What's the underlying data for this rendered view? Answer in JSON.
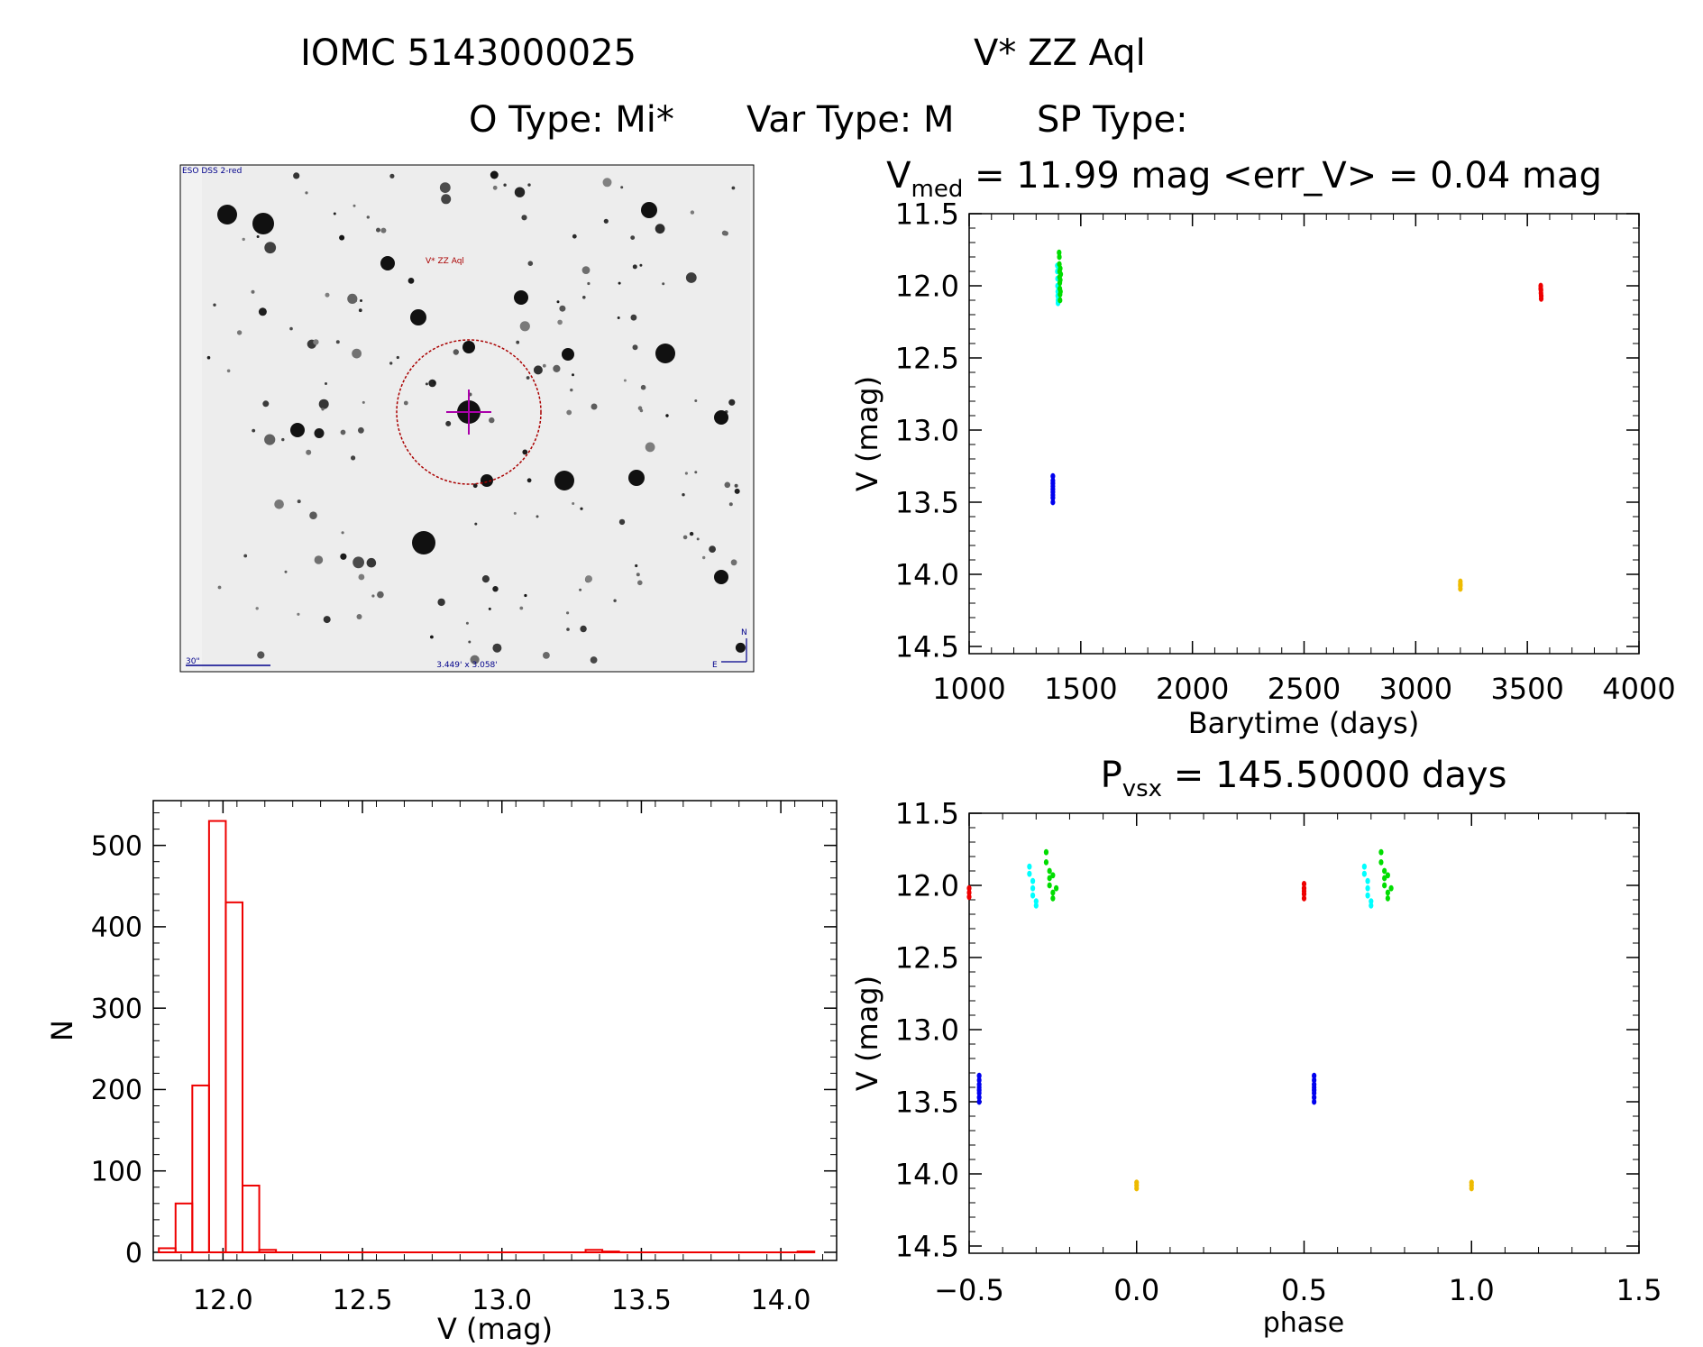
{
  "header": {
    "title_left": "IOMC 5143000025",
    "title_right": "V* ZZ Aql",
    "o_type": "O Type: Mi*",
    "var_type": "Var Type: M",
    "sp_type": "SP Type:"
  },
  "finder": {
    "survey_label": "ESO DSS 2-red",
    "target_label": "V* ZZ Aql",
    "scale_label": "30\"",
    "fov_label": "3.449' x 3.058'",
    "north_label": "N",
    "east_label": "E"
  },
  "chart_data": [
    {
      "id": "lightcurve",
      "type": "scatter",
      "title_main": "V",
      "title_sub": "med",
      "title_rest": " = 11.99 mag <err_V> = 0.04 mag",
      "xlabel": "Barytime (days)",
      "ylabel": "V (mag)",
      "xlim": [
        1000,
        4000
      ],
      "ylim": [
        14.55,
        11.5
      ],
      "xticks": [
        1000,
        1500,
        2000,
        2500,
        3000,
        3500,
        4000
      ],
      "xtick_labels": [
        "1000",
        "1500",
        "2000",
        "2500",
        "3000",
        "3500",
        "4000"
      ],
      "yticks": [
        11.5,
        12.0,
        12.5,
        13.0,
        13.5,
        14.0,
        14.5
      ],
      "ytick_labels": [
        "11.5",
        "12.0",
        "12.5",
        "13.0",
        "13.5",
        "14.0",
        "14.5"
      ],
      "series": [
        {
          "color": "#0000ee",
          "x": [
            1375,
            1375,
            1375,
            1375,
            1375,
            1375,
            1375,
            1375,
            1375
          ],
          "y": [
            13.32,
            13.35,
            13.37,
            13.39,
            13.41,
            13.43,
            13.45,
            13.47,
            13.5
          ]
        },
        {
          "color": "#00ffff",
          "x": [
            1395,
            1395,
            1396,
            1396,
            1397,
            1397,
            1398,
            1398,
            1399,
            1399
          ],
          "y": [
            11.86,
            11.9,
            11.95,
            12.0,
            12.04,
            12.07,
            12.1,
            12.12,
            12.06,
            12.01
          ]
        },
        {
          "color": "#00dd00",
          "x": [
            1403,
            1404,
            1404,
            1405,
            1405,
            1406,
            1406,
            1407,
            1407,
            1408,
            1408,
            1409,
            1410
          ],
          "y": [
            11.77,
            11.8,
            11.85,
            11.9,
            11.94,
            11.98,
            12.02,
            12.06,
            12.1,
            11.96,
            11.88,
            12.04,
            11.92
          ]
        },
        {
          "color": "#ee0000",
          "x": [
            3560,
            3560,
            3561,
            3561,
            3562,
            3562
          ],
          "y": [
            12.0,
            12.02,
            12.03,
            12.05,
            12.07,
            12.09
          ]
        },
        {
          "color": "#eebb00",
          "x": [
            3200,
            3200,
            3200,
            3200
          ],
          "y": [
            14.05,
            14.07,
            14.08,
            14.1
          ]
        }
      ]
    },
    {
      "id": "histogram",
      "type": "bar",
      "xlabel": "V (mag)",
      "ylabel": "N",
      "xlim": [
        11.75,
        14.2
      ],
      "ylim": [
        -10,
        555
      ],
      "xticks": [
        12.0,
        12.5,
        13.0,
        13.5,
        14.0
      ],
      "xtick_labels": [
        "12.0",
        "12.5",
        "13.0",
        "13.5",
        "14.0"
      ],
      "yticks": [
        0,
        100,
        200,
        300,
        400,
        500
      ],
      "ytick_labels": [
        "0",
        "100",
        "200",
        "300",
        "400",
        "500"
      ],
      "bin_width": 0.06,
      "bin_starts": [
        11.77,
        11.83,
        11.89,
        11.95,
        12.01,
        12.07,
        12.13,
        13.3,
        13.36,
        14.06
      ],
      "values": [
        5,
        60,
        205,
        530,
        430,
        82,
        3,
        3,
        1,
        1
      ],
      "baseline_range": [
        11.77,
        14.12
      ]
    },
    {
      "id": "phased",
      "type": "scatter",
      "title_main": "P",
      "title_sub": "vsx",
      "title_rest": " = 145.50000 days",
      "xlabel": "phase",
      "ylabel": "V (mag)",
      "xlim": [
        -0.5,
        1.5
      ],
      "ylim": [
        14.55,
        11.5
      ],
      "xticks": [
        -0.5,
        0.0,
        0.5,
        1.0,
        1.5
      ],
      "xtick_labels": [
        "−0.5",
        "0.0",
        "0.5",
        "1.0",
        "1.5"
      ],
      "yticks": [
        11.5,
        12.0,
        12.5,
        13.0,
        13.5,
        14.0,
        14.5
      ],
      "ytick_labels": [
        "11.5",
        "12.0",
        "12.5",
        "13.0",
        "13.5",
        "14.0",
        "14.5"
      ],
      "series": [
        {
          "color": "#0000ee",
          "x": [
            -0.47,
            -0.47,
            -0.47,
            -0.47,
            -0.47,
            -0.47,
            -0.47,
            -0.47,
            0.53,
            0.53,
            0.53,
            0.53,
            0.53,
            0.53,
            0.53,
            0.53
          ],
          "y": [
            13.32,
            13.35,
            13.38,
            13.4,
            13.42,
            13.44,
            13.47,
            13.5,
            13.32,
            13.35,
            13.38,
            13.4,
            13.42,
            13.44,
            13.47,
            13.5
          ]
        },
        {
          "color": "#00ffff",
          "x": [
            -0.32,
            -0.32,
            -0.31,
            -0.31,
            -0.31,
            -0.3,
            -0.3,
            0.68,
            0.68,
            0.69,
            0.69,
            0.69,
            0.7,
            0.7
          ],
          "y": [
            11.87,
            11.92,
            11.97,
            12.02,
            12.07,
            12.11,
            12.14,
            11.87,
            11.92,
            11.97,
            12.02,
            12.07,
            12.11,
            12.14
          ]
        },
        {
          "color": "#00dd00",
          "x": [
            -0.27,
            -0.27,
            -0.26,
            -0.26,
            -0.26,
            -0.25,
            -0.25,
            -0.25,
            -0.24,
            0.73,
            0.73,
            0.74,
            0.74,
            0.74,
            0.75,
            0.75,
            0.75,
            0.76
          ],
          "y": [
            11.77,
            11.84,
            11.9,
            11.95,
            12.0,
            12.05,
            12.09,
            11.93,
            12.02,
            11.77,
            11.84,
            11.9,
            11.95,
            12.0,
            12.05,
            12.09,
            11.93,
            12.02
          ]
        },
        {
          "color": "#ee0000",
          "x": [
            -0.5,
            -0.5,
            -0.5,
            0.5,
            0.5,
            0.5,
            0.5,
            0.5
          ],
          "y": [
            12.02,
            12.05,
            12.08,
            11.99,
            12.02,
            12.04,
            12.06,
            12.09
          ]
        },
        {
          "color": "#eebb00",
          "x": [
            0.0,
            0.0,
            0.0,
            1.0,
            1.0,
            1.0
          ],
          "y": [
            14.06,
            14.08,
            14.1,
            14.06,
            14.08,
            14.1
          ]
        }
      ]
    }
  ]
}
